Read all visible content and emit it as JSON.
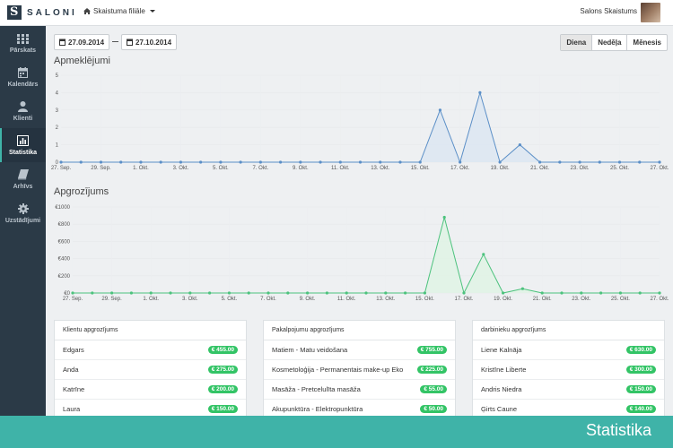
{
  "app": {
    "logo_text": "SALONI"
  },
  "topbar": {
    "branch": "Skaistuma filiāle",
    "user_name": "Salons Skaistums"
  },
  "sidebar": {
    "items": [
      {
        "label": "Pārskats",
        "icon": "grid-icon",
        "active": false
      },
      {
        "label": "Kalendārs",
        "icon": "calendar-icon",
        "active": false
      },
      {
        "label": "Klienti",
        "icon": "user-icon",
        "active": false
      },
      {
        "label": "Statistika",
        "icon": "bar-chart-icon",
        "active": true
      },
      {
        "label": "Arhīvs",
        "icon": "book-icon",
        "active": false
      },
      {
        "label": "Uzstādījumi",
        "icon": "gear-icon",
        "active": false
      }
    ]
  },
  "filters": {
    "date_from": "27.09.2014",
    "date_to": "27.10.2014",
    "periods": [
      "Diena",
      "Nedēļa",
      "Mēnesis"
    ],
    "active_period": "Diena"
  },
  "chart_data": [
    {
      "type": "area",
      "title": "Apmeklējumi",
      "x": [
        "27. Sep.",
        "28. Sep.",
        "29. Sep.",
        "30. Sep.",
        "1. Okt.",
        "2. Okt.",
        "3. Okt.",
        "4. Okt.",
        "5. Okt.",
        "6. Okt.",
        "7. Okt.",
        "8. Okt.",
        "9. Okt.",
        "10. Okt.",
        "11. Okt.",
        "12. Okt.",
        "13. Okt.",
        "14. Okt.",
        "15. Okt.",
        "16. Okt.",
        "17. Okt.",
        "18. Okt.",
        "19. Okt.",
        "20. Okt.",
        "21. Okt.",
        "22. Okt.",
        "23. Okt.",
        "24. Okt.",
        "25. Okt.",
        "26. Okt.",
        "27. Okt."
      ],
      "tick_labels": [
        "27. Sep.",
        "29. Sep.",
        "1. Okt.",
        "3. Okt.",
        "5. Okt.",
        "7. Okt.",
        "9. Okt.",
        "11. Okt.",
        "13. Okt.",
        "15. Okt.",
        "17. Okt.",
        "19. Okt.",
        "21. Okt.",
        "23. Okt.",
        "25. Okt.",
        "27. Okt."
      ],
      "values": [
        0,
        0,
        0,
        0,
        0,
        0,
        0,
        0,
        0,
        0,
        0,
        0,
        0,
        0,
        0,
        0,
        0,
        0,
        0,
        3,
        0,
        4,
        0,
        1,
        0,
        0,
        0,
        0,
        0,
        0,
        0
      ],
      "yticks": [
        "0",
        "1",
        "2",
        "3",
        "4",
        "5"
      ],
      "ylim": [
        0,
        5
      ],
      "grid": true,
      "color": "#5b8fc7",
      "fill": "#dde7f2"
    },
    {
      "type": "area",
      "title": "Apgrozījums",
      "x": [
        "27. Sep.",
        "28. Sep.",
        "29. Sep.",
        "30. Sep.",
        "1. Okt.",
        "2. Okt.",
        "3. Okt.",
        "4. Okt.",
        "5. Okt.",
        "6. Okt.",
        "7. Okt.",
        "8. Okt.",
        "9. Okt.",
        "10. Okt.",
        "11. Okt.",
        "12. Okt.",
        "13. Okt.",
        "14. Okt.",
        "15. Okt.",
        "16. Okt.",
        "17. Okt.",
        "18. Okt.",
        "19. Okt.",
        "20. Okt.",
        "21. Okt.",
        "22. Okt.",
        "23. Okt.",
        "24. Okt.",
        "25. Okt.",
        "26. Okt.",
        "27. Okt."
      ],
      "tick_labels": [
        "27. Sep.",
        "29. Sep.",
        "1. Okt.",
        "3. Okt.",
        "5. Okt.",
        "7. Okt.",
        "9. Okt.",
        "11. Okt.",
        "13. Okt.",
        "15. Okt.",
        "17. Okt.",
        "19. Okt.",
        "21. Okt.",
        "23. Okt.",
        "25. Okt.",
        "27. Okt."
      ],
      "values": [
        0,
        0,
        0,
        0,
        0,
        0,
        0,
        0,
        0,
        0,
        0,
        0,
        0,
        0,
        0,
        0,
        0,
        0,
        0,
        880,
        0,
        450,
        0,
        50,
        0,
        0,
        0,
        0,
        0,
        0,
        0
      ],
      "yticks": [
        "€0",
        "€200",
        "€400",
        "€600",
        "€800",
        "€1000"
      ],
      "ylim": [
        0,
        1000
      ],
      "grid": true,
      "color": "#4cc27d",
      "fill": "#e0f3e6"
    }
  ],
  "panels": [
    {
      "title": "Klientu apgrozījums",
      "rows": [
        {
          "name": "Edgars",
          "amount": "€ 455.00"
        },
        {
          "name": "Anda",
          "amount": "€ 275.00"
        },
        {
          "name": "Katrīne",
          "amount": "€ 200.00"
        },
        {
          "name": "Laura",
          "amount": "€ 150.00"
        }
      ]
    },
    {
      "title": "Pakalpojumu apgrozījums",
      "rows": [
        {
          "name": "Matiem - Matu veidošana",
          "amount": "€ 755.00"
        },
        {
          "name": "Kosmetoloģija - Permanentais make-up Eko",
          "amount": "€ 225.00"
        },
        {
          "name": "Masāža - Pretcelulīta masāža",
          "amount": "€ 55.00"
        },
        {
          "name": "Akupunktūra - Elektropunktūra",
          "amount": "€ 50.00"
        }
      ]
    },
    {
      "title": "darbinieku apgrozījums",
      "rows": [
        {
          "name": "Liene Kalnāja",
          "amount": "€ 630.00"
        },
        {
          "name": "Kristīne Liberte",
          "amount": "€ 300.00"
        },
        {
          "name": "Andris Niedra",
          "amount": "€ 150.00"
        },
        {
          "name": "Ģirts Caune",
          "amount": "€ 140.00"
        }
      ]
    }
  ],
  "footer": {
    "title": "Statistika"
  },
  "colors": {
    "sidebar": "#2b3a47",
    "accent": "#3fb3a8",
    "badge": "#33c466"
  }
}
